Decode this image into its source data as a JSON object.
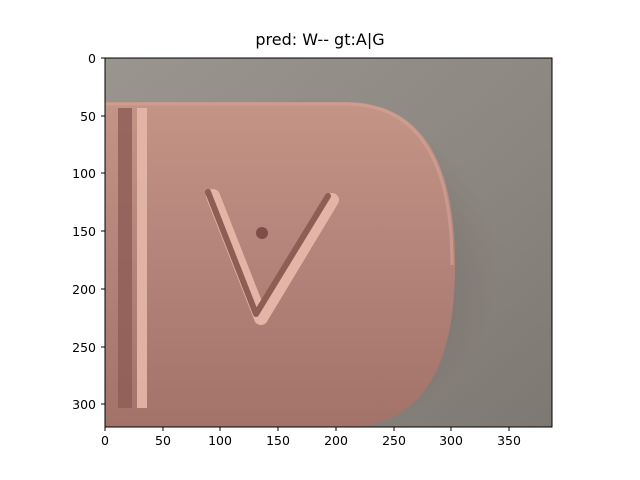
{
  "figure": {
    "title": "pred: W-- gt:A|G"
  },
  "image": {
    "subject": "pink oblong pill with debossed V-shaped letter and score line",
    "colors": {
      "background": "#8f8a84",
      "pill": "#b48476",
      "pill_highlight": "#d8ab9c",
      "shadow": "#6f6660"
    }
  },
  "axes": {
    "x_ticks": [
      "0",
      "50",
      "100",
      "150",
      "200",
      "250",
      "300",
      "350"
    ],
    "y_ticks": [
      "0",
      "50",
      "100",
      "150",
      "200",
      "250",
      "300"
    ],
    "x_range": [
      0,
      388
    ],
    "y_range": [
      0,
      320
    ]
  }
}
